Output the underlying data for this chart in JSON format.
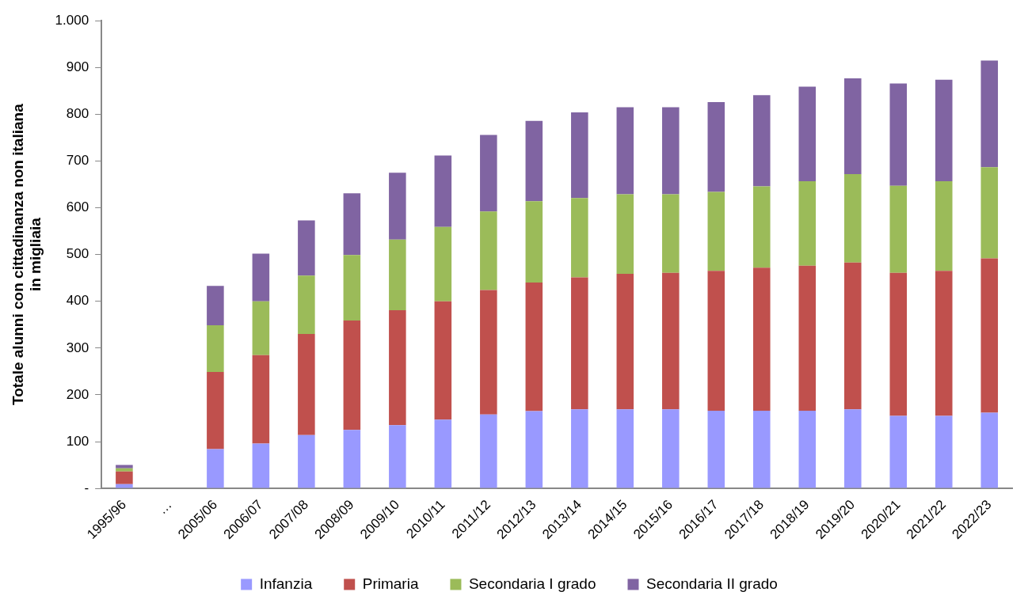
{
  "chart_data": {
    "type": "bar",
    "stacked": true,
    "ylabel": "Totale alunni con cittadinanza non italiana in migliaia",
    "categories": [
      "1995/96",
      "…",
      "2005/06",
      "2006/07",
      "2007/08",
      "2008/09",
      "2009/10",
      "2010/11",
      "2011/12",
      "2012/13",
      "2013/14",
      "2014/15",
      "2015/16",
      "2016/17",
      "2017/18",
      "2018/19",
      "2019/20",
      "2020/21",
      "2021/22",
      "2022/23"
    ],
    "series": [
      {
        "name": "Infanzia",
        "color": "#9999ff",
        "values": [
          9,
          null,
          84,
          96,
          114,
          125,
          135,
          147,
          158,
          165,
          169,
          169,
          169,
          166,
          166,
          166,
          169,
          155,
          155,
          162
        ]
      },
      {
        "name": "Primaria",
        "color": "#c0504d",
        "values": [
          27,
          null,
          165,
          189,
          216,
          234,
          246,
          253,
          266,
          275,
          282,
          290,
          292,
          299,
          306,
          310,
          314,
          306,
          310,
          330
        ]
      },
      {
        "name": "Secondaria I grado",
        "color": "#9bbb59",
        "values": [
          7,
          null,
          100,
          115,
          125,
          140,
          151,
          159,
          168,
          174,
          170,
          170,
          168,
          169,
          174,
          181,
          189,
          186,
          192,
          195
        ]
      },
      {
        "name": "Secondaria II grado",
        "color": "#8064a2",
        "values": [
          7,
          null,
          84,
          102,
          118,
          132,
          143,
          153,
          164,
          172,
          183,
          186,
          186,
          192,
          195,
          202,
          205,
          219,
          217,
          228
        ]
      }
    ],
    "ylim": [
      0,
      1000
    ],
    "yticks": [
      {
        "value": 0,
        "label": "-"
      },
      {
        "value": 100,
        "label": "100"
      },
      {
        "value": 200,
        "label": "200"
      },
      {
        "value": 300,
        "label": "300"
      },
      {
        "value": 400,
        "label": "400"
      },
      {
        "value": 500,
        "label": "500"
      },
      {
        "value": 600,
        "label": "600"
      },
      {
        "value": 700,
        "label": "700"
      },
      {
        "value": 800,
        "label": "800"
      },
      {
        "value": 900,
        "label": "900"
      },
      {
        "value": 1000,
        "label": "1.000"
      }
    ],
    "grid": false,
    "legend": "bottom"
  }
}
